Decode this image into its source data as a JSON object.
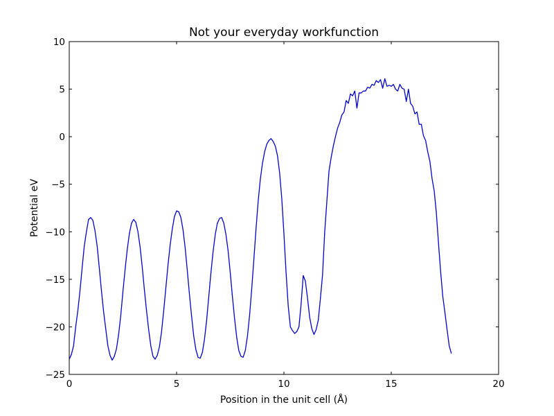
{
  "chart_data": {
    "type": "line",
    "title": "Not your everyday workfunction",
    "xlabel": "Position in the unit cell (Å)",
    "ylabel": "Potential eV",
    "xlim": [
      0,
      20
    ],
    "ylim": [
      -25,
      10
    ],
    "xticks": [
      0,
      5,
      10,
      15,
      20
    ],
    "yticks": [
      -25,
      -20,
      -15,
      -10,
      -5,
      0,
      5,
      10
    ],
    "xtick_labels": [
      "0",
      "5",
      "10",
      "15",
      "20"
    ],
    "ytick_labels": [
      "−25",
      "−20",
      "−15",
      "−10",
      "−5",
      "0",
      "5",
      "10"
    ],
    "grid": false,
    "series": [
      {
        "color": "#0000cc",
        "points": [
          [
            0.0,
            -23.4
          ],
          [
            0.1,
            -22.9
          ],
          [
            0.2,
            -22.0
          ],
          [
            0.3,
            -20.0
          ],
          [
            0.4,
            -18.3
          ],
          [
            0.5,
            -16.2
          ],
          [
            0.6,
            -13.8
          ],
          [
            0.7,
            -11.5
          ],
          [
            0.8,
            -10.0
          ],
          [
            0.9,
            -8.7
          ],
          [
            1.0,
            -8.5
          ],
          [
            1.1,
            -8.8
          ],
          [
            1.2,
            -9.9
          ],
          [
            1.3,
            -11.5
          ],
          [
            1.4,
            -13.8
          ],
          [
            1.5,
            -16.2
          ],
          [
            1.6,
            -18.4
          ],
          [
            1.7,
            -20.2
          ],
          [
            1.8,
            -22.0
          ],
          [
            1.9,
            -23.0
          ],
          [
            2.0,
            -23.5
          ],
          [
            2.1,
            -23.1
          ],
          [
            2.2,
            -22.3
          ],
          [
            2.3,
            -20.8
          ],
          [
            2.4,
            -18.8
          ],
          [
            2.5,
            -16.3
          ],
          [
            2.6,
            -14.0
          ],
          [
            2.7,
            -11.9
          ],
          [
            2.8,
            -10.2
          ],
          [
            2.9,
            -9.1
          ],
          [
            3.0,
            -8.7
          ],
          [
            3.1,
            -9.0
          ],
          [
            3.2,
            -10.0
          ],
          [
            3.3,
            -11.6
          ],
          [
            3.4,
            -13.7
          ],
          [
            3.5,
            -16.1
          ],
          [
            3.6,
            -18.3
          ],
          [
            3.7,
            -20.3
          ],
          [
            3.8,
            -22.0
          ],
          [
            3.9,
            -23.1
          ],
          [
            4.0,
            -23.4
          ],
          [
            4.1,
            -23.0
          ],
          [
            4.2,
            -22.1
          ],
          [
            4.3,
            -20.5
          ],
          [
            4.4,
            -18.3
          ],
          [
            4.5,
            -15.9
          ],
          [
            4.6,
            -13.5
          ],
          [
            4.7,
            -11.4
          ],
          [
            4.8,
            -9.7
          ],
          [
            4.9,
            -8.4
          ],
          [
            5.0,
            -7.8
          ],
          [
            5.1,
            -7.9
          ],
          [
            5.2,
            -8.5
          ],
          [
            5.3,
            -9.8
          ],
          [
            5.4,
            -11.7
          ],
          [
            5.5,
            -14.1
          ],
          [
            5.6,
            -16.6
          ],
          [
            5.7,
            -18.9
          ],
          [
            5.8,
            -21.0
          ],
          [
            5.9,
            -22.4
          ],
          [
            6.0,
            -23.2
          ],
          [
            6.1,
            -23.3
          ],
          [
            6.2,
            -22.7
          ],
          [
            6.3,
            -21.3
          ],
          [
            6.4,
            -19.3
          ],
          [
            6.5,
            -16.8
          ],
          [
            6.6,
            -14.3
          ],
          [
            6.7,
            -12.1
          ],
          [
            6.8,
            -10.3
          ],
          [
            6.9,
            -9.1
          ],
          [
            7.0,
            -8.6
          ],
          [
            7.1,
            -8.5
          ],
          [
            7.2,
            -9.1
          ],
          [
            7.3,
            -10.3
          ],
          [
            7.4,
            -12.0
          ],
          [
            7.5,
            -14.3
          ],
          [
            7.6,
            -16.8
          ],
          [
            7.7,
            -19.1
          ],
          [
            7.8,
            -21.1
          ],
          [
            7.9,
            -22.5
          ],
          [
            8.0,
            -23.1
          ],
          [
            8.1,
            -23.2
          ],
          [
            8.2,
            -22.5
          ],
          [
            8.3,
            -21.0
          ],
          [
            8.4,
            -18.8
          ],
          [
            8.5,
            -16.0
          ],
          [
            8.6,
            -12.9
          ],
          [
            8.7,
            -9.7
          ],
          [
            8.8,
            -6.8
          ],
          [
            8.9,
            -4.5
          ],
          [
            9.0,
            -2.8
          ],
          [
            9.1,
            -1.6
          ],
          [
            9.2,
            -0.8
          ],
          [
            9.3,
            -0.4
          ],
          [
            9.4,
            -0.2
          ],
          [
            9.5,
            -0.5
          ],
          [
            9.6,
            -1.0
          ],
          [
            9.7,
            -2.0
          ],
          [
            9.8,
            -3.8
          ],
          [
            9.9,
            -6.5
          ],
          [
            10.0,
            -10.2
          ],
          [
            10.1,
            -14.3
          ],
          [
            10.2,
            -17.8
          ],
          [
            10.3,
            -20.0
          ],
          [
            10.4,
            -20.4
          ],
          [
            10.5,
            -20.7
          ],
          [
            10.6,
            -20.5
          ],
          [
            10.7,
            -20.0
          ],
          [
            10.8,
            -17.6
          ],
          [
            10.9,
            -14.6
          ],
          [
            11.0,
            -15.2
          ],
          [
            11.1,
            -17.0
          ],
          [
            11.2,
            -19.0
          ],
          [
            11.3,
            -20.2
          ],
          [
            11.4,
            -20.8
          ],
          [
            11.5,
            -20.3
          ],
          [
            11.6,
            -19.3
          ],
          [
            11.7,
            -17.0
          ],
          [
            11.8,
            -14.5
          ],
          [
            11.9,
            -10.0
          ],
          [
            12.0,
            -6.8
          ],
          [
            12.1,
            -3.6
          ],
          [
            12.2,
            -2.2
          ],
          [
            12.3,
            -1.0
          ],
          [
            12.4,
            0.0
          ],
          [
            12.5,
            0.9
          ],
          [
            12.6,
            1.5
          ],
          [
            12.7,
            2.3
          ],
          [
            12.8,
            2.6
          ],
          [
            12.9,
            3.8
          ],
          [
            13.0,
            3.5
          ],
          [
            13.1,
            4.5
          ],
          [
            13.2,
            4.3
          ],
          [
            13.3,
            4.8
          ],
          [
            13.4,
            3.0
          ],
          [
            13.5,
            4.6
          ],
          [
            13.6,
            4.6
          ],
          [
            13.7,
            4.8
          ],
          [
            13.8,
            4.8
          ],
          [
            13.9,
            5.2
          ],
          [
            14.0,
            5.1
          ],
          [
            14.1,
            5.5
          ],
          [
            14.2,
            5.4
          ],
          [
            14.3,
            5.9
          ],
          [
            14.4,
            5.7
          ],
          [
            14.5,
            6.0
          ],
          [
            14.6,
            5.1
          ],
          [
            14.7,
            6.1
          ],
          [
            14.8,
            5.3
          ],
          [
            14.9,
            5.4
          ],
          [
            15.0,
            5.3
          ],
          [
            15.1,
            5.5
          ],
          [
            15.2,
            5.0
          ],
          [
            15.3,
            4.8
          ],
          [
            15.4,
            5.5
          ],
          [
            15.5,
            5.1
          ],
          [
            15.6,
            5.0
          ],
          [
            15.7,
            3.7
          ],
          [
            15.8,
            5.0
          ],
          [
            15.9,
            3.5
          ],
          [
            16.0,
            3.2
          ],
          [
            16.1,
            2.4
          ],
          [
            16.2,
            2.6
          ],
          [
            16.3,
            1.3
          ],
          [
            16.4,
            1.3
          ],
          [
            16.5,
            0.1
          ],
          [
            16.6,
            -0.4
          ],
          [
            16.7,
            -1.6
          ],
          [
            16.8,
            -2.6
          ],
          [
            16.9,
            -4.4
          ],
          [
            17.0,
            -5.7
          ],
          [
            17.1,
            -8.0
          ],
          [
            17.2,
            -11.2
          ],
          [
            17.3,
            -14.2
          ],
          [
            17.4,
            -16.8
          ],
          [
            17.5,
            -18.5
          ],
          [
            17.6,
            -20.3
          ],
          [
            17.7,
            -22.0
          ],
          [
            17.8,
            -22.8
          ]
        ]
      }
    ]
  }
}
